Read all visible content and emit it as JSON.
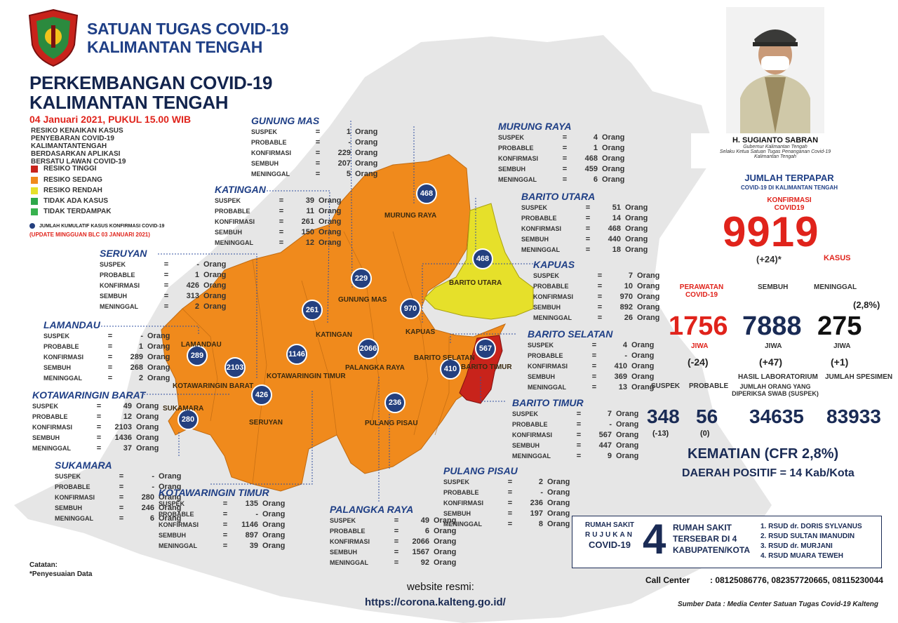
{
  "header": {
    "org_line1": "SATUAN TUGAS COVID-19",
    "org_line2": "KALIMANTAN TENGAH",
    "title_line1": "PERKEMBANGAN COVID-19",
    "title_line2": "KALIMANTAN TENGAH",
    "date": "04 Januari 2021, PUKUL 15.00 WIB"
  },
  "legend": {
    "title": "RESIKO KENAIKAN KASUS PENYEBARAN COVID-19 KALIMANTANTENGAH BERDASARKAN APLIKASI BERSATU LAWAN COVID-19",
    "items": [
      {
        "label": "RESIKO TINGGI",
        "color": "#c8231b"
      },
      {
        "label": "RESIKO SEDANG",
        "color": "#f08a1c"
      },
      {
        "label": "RESIKO RENDAH",
        "color": "#e6e02a"
      },
      {
        "label": "TIDAK ADA KASUS",
        "color": "#2ea84a"
      },
      {
        "label": "TIDAK TERDAMPAK",
        "color": "#38b24f"
      }
    ],
    "dot_note": "JUMLAH KUMULATIF KASUS KONFIRMASI COVID-19",
    "update_note": "(UPDATE MINGGUAN BLC 03 JANUARI 2021)"
  },
  "labels": {
    "suspek": "SUSPEK",
    "probable": "PROBABLE",
    "konfirmasi": "KONFIRMASI",
    "sembuh": "SEMBUH",
    "meninggal": "MENINGGAL",
    "eq": "=",
    "unit": "Orang"
  },
  "regions": [
    {
      "name": "GUNUNG MAS",
      "suspek": "1",
      "probable": "-",
      "konfirmasi": "229",
      "sembuh": "207",
      "meninggal": "5"
    },
    {
      "name": "MURUNG RAYA",
      "suspek": "4",
      "probable": "1",
      "konfirmasi": "468",
      "sembuh": "459",
      "meninggal": "6"
    },
    {
      "name": "KATINGAN",
      "suspek": "39",
      "probable": "11",
      "konfirmasi": "261",
      "sembuh": "150",
      "meninggal": "12"
    },
    {
      "name": "BARITO UTARA",
      "suspek": "51",
      "probable": "14",
      "konfirmasi": "468",
      "sembuh": "440",
      "meninggal": "18"
    },
    {
      "name": "SERUYAN",
      "suspek": "-",
      "probable": "1",
      "konfirmasi": "426",
      "sembuh": "313",
      "meninggal": "2"
    },
    {
      "name": "KAPUAS",
      "suspek": "7",
      "probable": "10",
      "konfirmasi": "970",
      "sembuh": "892",
      "meninggal": "26"
    },
    {
      "name": "LAMANDAU",
      "suspek": "-",
      "probable": "1",
      "konfirmasi": "289",
      "sembuh": "268",
      "meninggal": "2"
    },
    {
      "name": "BARITO SELATAN",
      "suspek": "4",
      "probable": "-",
      "konfirmasi": "410",
      "sembuh": "369",
      "meninggal": "13"
    },
    {
      "name": "KOTAWARINGIN BARAT",
      "suspek": "49",
      "probable": "12",
      "konfirmasi": "2103",
      "sembuh": "1436",
      "meninggal": "37"
    },
    {
      "name": "BARITO TIMUR",
      "suspek": "7",
      "probable": "-",
      "konfirmasi": "567",
      "sembuh": "447",
      "meninggal": "9"
    },
    {
      "name": "SUKAMARA",
      "suspek": "-",
      "probable": "-",
      "konfirmasi": "280",
      "sembuh": "246",
      "meninggal": "6"
    },
    {
      "name": "PULANG PISAU",
      "suspek": "2",
      "probable": "-",
      "konfirmasi": "236",
      "sembuh": "197",
      "meninggal": "8"
    },
    {
      "name": "KOTAWARINGIN TIMUR",
      "suspek": "135",
      "probable": "-",
      "konfirmasi": "1146",
      "sembuh": "897",
      "meninggal": "39"
    },
    {
      "name": "PALANGKA RAYA",
      "suspek": "49",
      "probable": "6",
      "konfirmasi": "2066",
      "sembuh": "1567",
      "meninggal": "92"
    }
  ],
  "map_dots": [
    "468",
    "229",
    "261",
    "970",
    "468",
    "289",
    "2103",
    "1146",
    "2066",
    "426",
    "567",
    "410",
    "280",
    "236"
  ],
  "map_labels": [
    "MURUNG RAYA",
    "BARITO UTARA",
    "GUNUNG MAS",
    "KATINGAN",
    "KAPUAS",
    "LAMANDAU",
    "KOTAWARINGIN BARAT",
    "KOTAWARINGIN TIMUR",
    "PALANGKA RAYA",
    "BARITO SELATAN",
    "BARITO TIMUR",
    "SUKAMARA",
    "SERUYAN",
    "PULANG PISAU"
  ],
  "governor": {
    "name": "H. SUGIANTO SABRAN",
    "role1": "Gubernur Kalimantan Tengah",
    "role2": "Selaku Ketua Satuan Tugas Penanganan Covid-19",
    "role3": "Kalimantan Tengah"
  },
  "summary": {
    "title": "JUMLAH TERPAPAR",
    "subtitle": "COVID-19 DI KALIMANTAN TENGAH",
    "konf_label": "KONFIRMASI COVID19",
    "total": "9919",
    "total_delta": "(+24)*",
    "kasus": "KASUS",
    "perawatan_label": "PERAWATAN COVID-19",
    "sembuh_label": "SEMBUH",
    "meninggal_label": "MENINGGAL",
    "meninggal_pct": "(2,8%)",
    "perawatan": "1756",
    "sembuh": "7888",
    "meninggal": "275",
    "jiwa": "JIWA",
    "perawatan_delta": "(-24)",
    "sembuh_delta": "(+47)",
    "meninggal_delta": "(+1)",
    "suspek_label": "SUSPEK",
    "probable_label": "PROBABLE",
    "lab_label": "HASIL LABORATORIUM",
    "spesimen_label": "JUMLAH SPESIMEN",
    "swab_label": "JUMLAH ORANG YANG DIPERIKSA SWAB (SUSPEK)",
    "suspek": "348",
    "probable": "56",
    "swab": "34635",
    "spesimen": "83933",
    "suspek_delta": "(-13)",
    "probable_delta": "(0)",
    "kematian": "KEMATIAN (CFR 2,8%)",
    "daerah": "DAERAH POSITIF = 14 Kab/Kota"
  },
  "hospital": {
    "label1": "RUMAH SAKIT",
    "label2": "RUJUKAN",
    "label3": "COVID-19",
    "count": "4",
    "desc1": "RUMAH SAKIT",
    "desc2": "TERSEBAR DI 4",
    "desc3": "KABUPATEN/KOTA",
    "list": [
      "1. RSUD dr. DORIS SYLVANUS",
      "2. RSUD SULTAN IMANUDIN",
      "3. RSUD dr. MURJANI",
      "4. RSUD MUARA TEWEH"
    ]
  },
  "footer": {
    "call_center_label": "Call Center",
    "call_center": ": 08125086776, 082357720665, 08115230044",
    "source": "Sumber Data : Media Center Satuan Tugas Covid-19 Kalteng",
    "catatan": "Catatan:",
    "catatan_note": "*Penyesuaian Data",
    "website_label": "website resmi:",
    "website": "https://corona.kalteng.go.id/"
  },
  "colors": {
    "high": "#c8231b",
    "medium": "#f08a1c",
    "low": "#e6e02a",
    "accent": "#1f3f86",
    "red": "#e0231b",
    "dot": "#24407f",
    "bgmap": "#e6e6e6"
  }
}
